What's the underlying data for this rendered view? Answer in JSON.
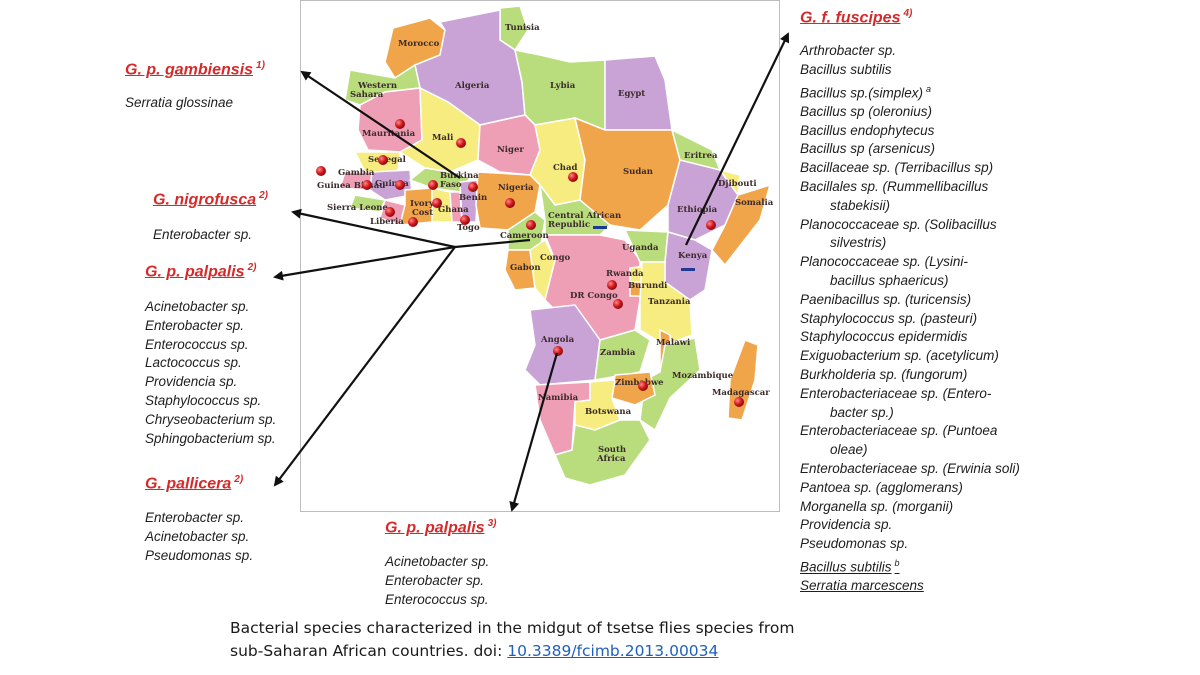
{
  "map": {
    "countries": [
      "Morocco",
      "Tunisia",
      "Algeria",
      "Lybia",
      "Egypt",
      "Western Sahara",
      "Mauritania",
      "Mali",
      "Niger",
      "Chad",
      "Sudan",
      "Eritrea",
      "Djibouti",
      "Senegal",
      "Gambia",
      "Guinea Bissau",
      "Guinea",
      "Burkina Faso",
      "Benin",
      "Nigeria",
      "Ethiopia",
      "Somalia",
      "Sierra Leone",
      "Liberia",
      "Ivory Cost",
      "Ghana",
      "Togo",
      "Cameroon",
      "Central African Republic",
      "Uganda",
      "Kenya",
      "Gabon",
      "Congo",
      "Rwanda",
      "Burundi",
      "DR Congo",
      "Tanzania",
      "Angola",
      "Zambia",
      "Malawi",
      "Mozambique",
      "Zimbabwe",
      "Namibia",
      "Botswana",
      "South Africa",
      "Madagascar"
    ],
    "colors": {
      "purple": "#c9a3d6",
      "green": "#b9dc7d",
      "orange": "#f0a54a",
      "pink": "#ef9fb5",
      "yellow": "#f6ec7f",
      "marker": "#d2181d"
    }
  },
  "groups": [
    {
      "name": "G. p. gambiensis",
      "ref": "1)",
      "bacteria": [
        "Serratia glossinae"
      ]
    },
    {
      "name": "G. nigrofusca",
      "ref": "2)",
      "bacteria": [
        "Enterobacter sp."
      ]
    },
    {
      "name": "G. p. palpalis",
      "ref": "2)",
      "bacteria": [
        "Acinetobacter sp.",
        "Enterobacter sp.",
        "Enterococcus sp.",
        "Lactococcus sp.",
        "Providencia sp.",
        "Staphylococcus sp.",
        "Chryseobacterium sp.",
        "Sphingobacterium sp."
      ]
    },
    {
      "name": "G. pallicera",
      "ref": "2)",
      "bacteria": [
        "Enterobacter sp.",
        "Acinetobacter sp.",
        "Pseudomonas sp."
      ]
    },
    {
      "name": "G. p. palpalis",
      "ref": "3)",
      "bacteria": [
        "Acinetobacter sp.",
        "Enterobacter sp.",
        "Enterococcus sp."
      ]
    },
    {
      "name": "G. f. fuscipes",
      "ref": "4)",
      "bacteria": [
        "Arthrobacter sp.",
        "Bacillus subtilis",
        "Bacillus sp.(simplex)",
        "Bacillus sp (oleronius)",
        "Bacillus endophytecus",
        "Bacillus sp (arsenicus)",
        "Bacillaceae sp. (Terribacillus sp)",
        "Bacillales sp. (Rummellibacillus",
        "stabekisii)",
        "Planococcaceae sp. (Solibacillus",
        "silvestris)",
        "Planococcaceae sp. (Lysini-",
        "bacillus  sphaericus)",
        "Paenibacillus sp. (turicensis)",
        "Staphylococcus sp. (pasteuri)",
        "Staphylococcus epidermidis",
        "Exiguobacterium sp. (acetylicum)",
        "Burkholderia sp. (fungorum)",
        "Enterobacteriaceae sp. (Entero-",
        "bacter sp.)",
        "Enterobacteriaceae sp. (Puntoea",
        "oleae)",
        "Enterobacteriaceae sp. (Erwinia soli)",
        "Pantoea sp. (agglomerans)",
        "Morganella sp. (morganii)",
        "Providencia sp.",
        "Pseudomonas sp.",
        "Bacillus subtilis",
        "Serratia marcescens"
      ],
      "footnotes": {
        "simplex": "a",
        "subtilis2": "b"
      }
    }
  ],
  "caption": {
    "line1": "Bacterial species characterized in the midgut of tsetse flies species from",
    "line2_prefix": "sub-Saharan African countries. doi: ",
    "doi": "10.3389/fcimb.2013.00034"
  }
}
